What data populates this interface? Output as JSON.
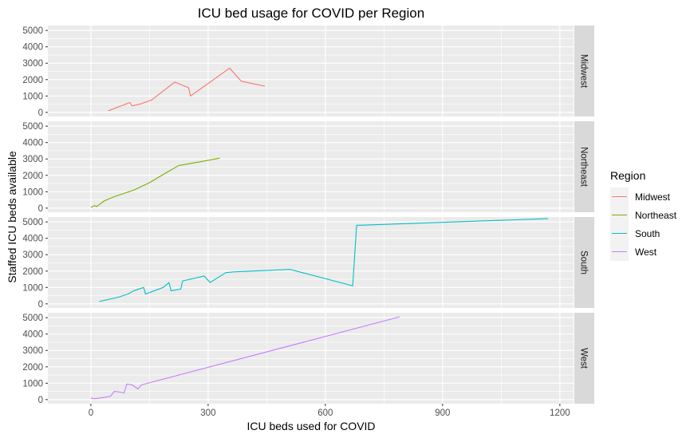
{
  "chart_data": {
    "type": "line",
    "title": "ICU bed usage for COVID per Region",
    "xlabel": "ICU beds used for COVID",
    "ylabel": "Staffed ICU beds available",
    "xlim": [
      -110,
      1235
    ],
    "ylim": [
      -250,
      5300
    ],
    "x_ticks": [
      0,
      300,
      600,
      900,
      1200
    ],
    "y_ticks": [
      0,
      1000,
      2000,
      3000,
      4000,
      5000
    ],
    "grid": true,
    "facet_by": "Region",
    "legend": {
      "title": "Region",
      "position": "right"
    },
    "series": [
      {
        "name": "Midwest",
        "color": "#F8766D",
        "x": [
          45,
          100,
          105,
          125,
          155,
          215,
          250,
          255,
          355,
          385,
          445
        ],
        "y": [
          100,
          600,
          400,
          500,
          750,
          1850,
          1500,
          1000,
          2700,
          1900,
          1600
        ]
      },
      {
        "name": "Northeast",
        "color": "#7CAE00",
        "x": [
          0,
          10,
          15,
          35,
          60,
          85,
          110,
          150,
          185,
          225,
          285,
          330
        ],
        "y": [
          50,
          150,
          100,
          450,
          700,
          900,
          1100,
          1550,
          2050,
          2600,
          2850,
          3050
        ]
      },
      {
        "name": "South",
        "color": "#00BFC4",
        "x": [
          22,
          70,
          95,
          110,
          135,
          140,
          185,
          200,
          205,
          230,
          235,
          290,
          305,
          345,
          365,
          510,
          670,
          680,
          690,
          1170
        ],
        "y": [
          150,
          400,
          600,
          800,
          1000,
          600,
          1000,
          1300,
          800,
          900,
          1400,
          1700,
          1300,
          1900,
          1950,
          2100,
          1100,
          4800,
          4800,
          5200
        ]
      },
      {
        "name": "West",
        "color": "#C77CFF",
        "x": [
          0,
          8,
          25,
          50,
          60,
          78,
          85,
          92,
          105,
          118,
          120,
          130,
          790
        ],
        "y": [
          100,
          50,
          100,
          200,
          500,
          450,
          400,
          950,
          900,
          700,
          650,
          900,
          5050
        ]
      }
    ]
  }
}
